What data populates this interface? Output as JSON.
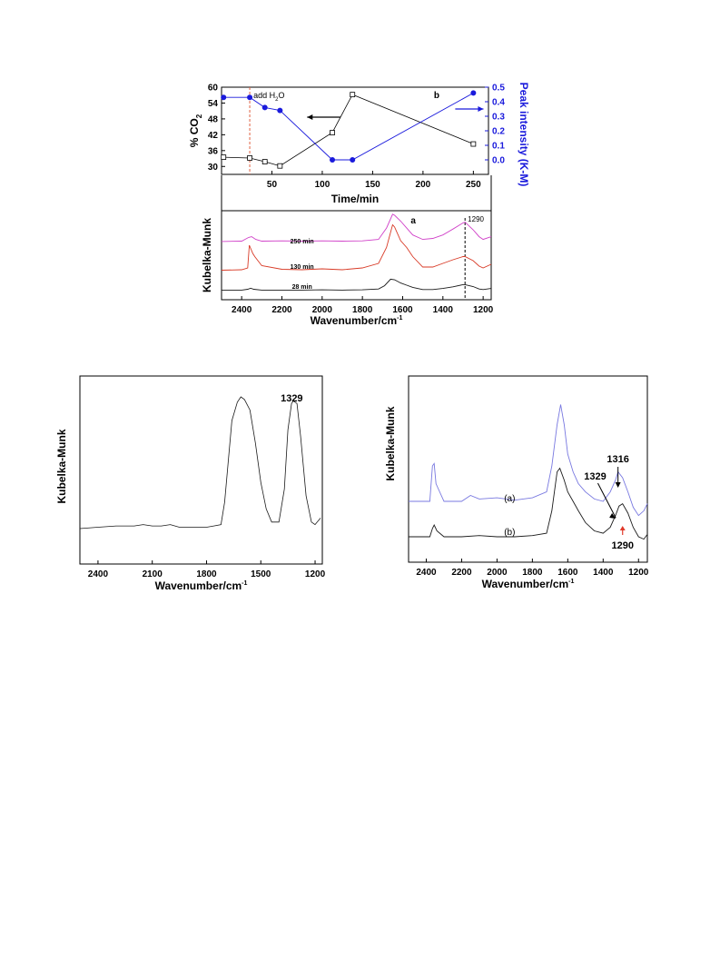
{
  "chart_data": [
    {
      "id": "top-b",
      "type": "line",
      "panel_label": "b",
      "xlabel": "Time/min",
      "ylabel_left": "% CO",
      "ylabel_left_sub": "2",
      "ylabel_right": "Peak intensity (K-M)",
      "xlim": [
        0,
        265
      ],
      "ylim_left": [
        27,
        60
      ],
      "ylim_right": [
        -0.1,
        0.5
      ],
      "xticks": [
        50,
        100,
        150,
        200,
        250
      ],
      "yticks_left": [
        30,
        36,
        42,
        48,
        54,
        60
      ],
      "yticks_right": [
        0.0,
        0.1,
        0.2,
        0.3,
        0.4,
        0.5
      ],
      "annotation": {
        "text": "add H",
        "sub": "2",
        "suffix": "O",
        "x": 28
      },
      "colors": {
        "left": "#000000",
        "right": "#1a1adc",
        "marker_line": "#e06040"
      },
      "series": [
        {
          "axis": "left",
          "marker": "open-square",
          "x": [
            2,
            28,
            43,
            58,
            110,
            130,
            250
          ],
          "y": [
            33.5,
            33.2,
            31.8,
            30.2,
            42.8,
            57.2,
            38.5
          ]
        },
        {
          "axis": "right",
          "marker": "filled-circle",
          "x": [
            2,
            28,
            43,
            58,
            110,
            130,
            250
          ],
          "y": [
            0.43,
            0.43,
            0.36,
            0.34,
            0.0,
            0.0,
            0.46
          ]
        }
      ]
    },
    {
      "id": "top-a",
      "type": "line",
      "panel_label": "a",
      "xlabel": "Wavenumber/cm",
      "xlabel_sup": "-1",
      "ylabel": "Kubelka-Munk",
      "xlim": [
        2500,
        1160
      ],
      "xticks": [
        2400,
        2200,
        2000,
        1800,
        1600,
        1400,
        1200
      ],
      "marker_line": {
        "x": 1290,
        "label": "1290"
      },
      "series": [
        {
          "name": "250 min",
          "color": "#d040c8",
          "x": [
            2500,
            2400,
            2365,
            2350,
            2330,
            2300,
            2200,
            2100,
            2000,
            1900,
            1800,
            1720,
            1680,
            1650,
            1640,
            1610,
            1580,
            1550,
            1500,
            1450,
            1400,
            1350,
            1300,
            1290,
            1250,
            1220,
            1200,
            1160
          ],
          "y": [
            0.16,
            0.17,
            0.28,
            0.3,
            0.22,
            0.17,
            0.18,
            0.17,
            0.18,
            0.17,
            0.18,
            0.22,
            0.55,
            0.95,
            0.92,
            0.75,
            0.55,
            0.35,
            0.22,
            0.25,
            0.35,
            0.52,
            0.7,
            0.72,
            0.5,
            0.3,
            0.22,
            0.3
          ]
        },
        {
          "name": "130 min",
          "color": "#d83a26",
          "x": [
            2500,
            2400,
            2370,
            2362,
            2345,
            2335,
            2300,
            2200,
            2100,
            2000,
            1900,
            1800,
            1720,
            1680,
            1650,
            1640,
            1610,
            1580,
            1550,
            1500,
            1450,
            1400,
            1350,
            1300,
            1290,
            1250,
            1220,
            1200,
            1160
          ],
          "y": [
            0.05,
            0.06,
            0.1,
            0.6,
            0.42,
            0.35,
            0.15,
            0.07,
            0.06,
            0.08,
            0.06,
            0.1,
            0.2,
            0.55,
            1.05,
            1.0,
            0.7,
            0.55,
            0.35,
            0.12,
            0.12,
            0.2,
            0.28,
            0.35,
            0.35,
            0.26,
            0.14,
            0.1,
            0.18
          ]
        },
        {
          "name": "28 min",
          "color": "#1a1a1a",
          "x": [
            2500,
            2400,
            2370,
            2355,
            2340,
            2300,
            2200,
            2100,
            2000,
            1900,
            1800,
            1720,
            1690,
            1660,
            1640,
            1610,
            1580,
            1550,
            1500,
            1450,
            1400,
            1350,
            1300,
            1290,
            1250,
            1220,
            1200,
            1160
          ],
          "y": [
            0.02,
            0.02,
            0.05,
            0.09,
            0.05,
            0.02,
            0.02,
            0.02,
            0.03,
            0.02,
            0.03,
            0.06,
            0.18,
            0.42,
            0.4,
            0.28,
            0.2,
            0.12,
            0.04,
            0.04,
            0.08,
            0.14,
            0.22,
            0.22,
            0.15,
            0.06,
            0.04,
            0.08
          ]
        }
      ]
    },
    {
      "id": "bottom-left",
      "type": "line",
      "xlabel": "Wavenumber/cm",
      "xlabel_sup": "-1",
      "ylabel": "Kubelka-Munk",
      "xlim": [
        2500,
        1160
      ],
      "xticks": [
        2400,
        2100,
        1800,
        1500,
        1200
      ],
      "peak_label": {
        "text": "1329",
        "x": 1329
      },
      "series": [
        {
          "color": "#1a1a1a",
          "x": [
            2500,
            2400,
            2300,
            2200,
            2150,
            2100,
            2050,
            2000,
            1950,
            1900,
            1850,
            1800,
            1760,
            1720,
            1700,
            1660,
            1630,
            1610,
            1590,
            1560,
            1530,
            1500,
            1470,
            1440,
            1400,
            1370,
            1350,
            1330,
            1320,
            1300,
            1280,
            1250,
            1220,
            1200,
            1170
          ],
          "y": [
            0.0,
            0.01,
            0.02,
            0.02,
            0.03,
            0.02,
            0.02,
            0.03,
            0.01,
            0.01,
            0.01,
            0.01,
            0.02,
            0.03,
            0.2,
            0.82,
            0.96,
            1.0,
            0.98,
            0.9,
            0.65,
            0.35,
            0.15,
            0.05,
            0.05,
            0.3,
            0.75,
            0.95,
            0.97,
            0.95,
            0.7,
            0.25,
            0.05,
            0.03,
            0.08
          ]
        }
      ]
    },
    {
      "id": "bottom-right",
      "type": "line",
      "xlabel": "Wavenumber/cm",
      "xlabel_sup": "-1",
      "ylabel": "Kubelka-Munk",
      "xlim": [
        2500,
        1150
      ],
      "xticks": [
        2400,
        2200,
        2000,
        1800,
        1600,
        1400,
        1200
      ],
      "annotations": [
        {
          "text": "1316",
          "x": 1316
        },
        {
          "text": "1329",
          "x": 1329
        },
        {
          "text": "1290",
          "x": 1290
        }
      ],
      "series": [
        {
          "name": "(a)",
          "color": "#7878e0",
          "x": [
            2500,
            2380,
            2365,
            2355,
            2345,
            2330,
            2300,
            2200,
            2150,
            2100,
            2000,
            1900,
            1800,
            1720,
            1690,
            1660,
            1640,
            1620,
            1600,
            1570,
            1540,
            1500,
            1450,
            1400,
            1360,
            1330,
            1316,
            1290,
            1260,
            1230,
            1200,
            1170,
            1150
          ],
          "y": [
            0.3,
            0.3,
            0.6,
            0.62,
            0.45,
            0.4,
            0.3,
            0.3,
            0.35,
            0.32,
            0.33,
            0.31,
            0.33,
            0.38,
            0.6,
            0.95,
            1.12,
            0.95,
            0.7,
            0.55,
            0.45,
            0.38,
            0.32,
            0.3,
            0.38,
            0.48,
            0.55,
            0.5,
            0.38,
            0.25,
            0.18,
            0.22,
            0.28
          ]
        },
        {
          "name": "(b)",
          "color": "#1a1a1a",
          "x": [
            2500,
            2380,
            2365,
            2355,
            2340,
            2300,
            2200,
            2100,
            2000,
            1900,
            1800,
            1720,
            1690,
            1660,
            1645,
            1620,
            1600,
            1570,
            1540,
            1500,
            1450,
            1400,
            1360,
            1330,
            1310,
            1290,
            1260,
            1230,
            1200,
            1170,
            1150
          ],
          "y": [
            0.0,
            0.0,
            0.07,
            0.1,
            0.05,
            0.0,
            0.0,
            0.01,
            0.0,
            0.0,
            0.01,
            0.03,
            0.22,
            0.55,
            0.58,
            0.48,
            0.38,
            0.3,
            0.22,
            0.12,
            0.05,
            0.03,
            0.08,
            0.18,
            0.26,
            0.28,
            0.2,
            0.08,
            0.0,
            -0.02,
            0.02
          ]
        }
      ]
    }
  ]
}
